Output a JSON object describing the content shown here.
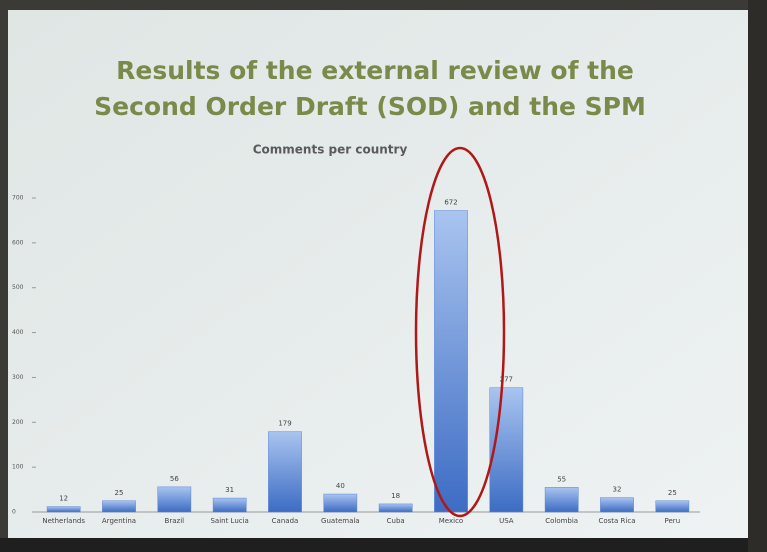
{
  "chart_data": {
    "type": "bar",
    "title": [
      "Results of the external review of the",
      "Second Order Draft (SOD) and the SPM"
    ],
    "subtitle": "Comments per country",
    "categories": [
      "Netherlands",
      "Argentina",
      "Brazil",
      "Saint Lucia",
      "Canada",
      "Guatemala",
      "Cuba",
      "Mexico",
      "USA",
      "Colombia",
      "Costa Rica",
      "Peru"
    ],
    "values": [
      12,
      25,
      56,
      31,
      179,
      40,
      18,
      672,
      277,
      55,
      32,
      25
    ],
    "color": "#5a86d6",
    "ylim": [
      0,
      700
    ],
    "yticks": [
      0,
      100,
      200,
      300,
      400,
      500,
      600,
      700
    ],
    "grid": false
  }
}
